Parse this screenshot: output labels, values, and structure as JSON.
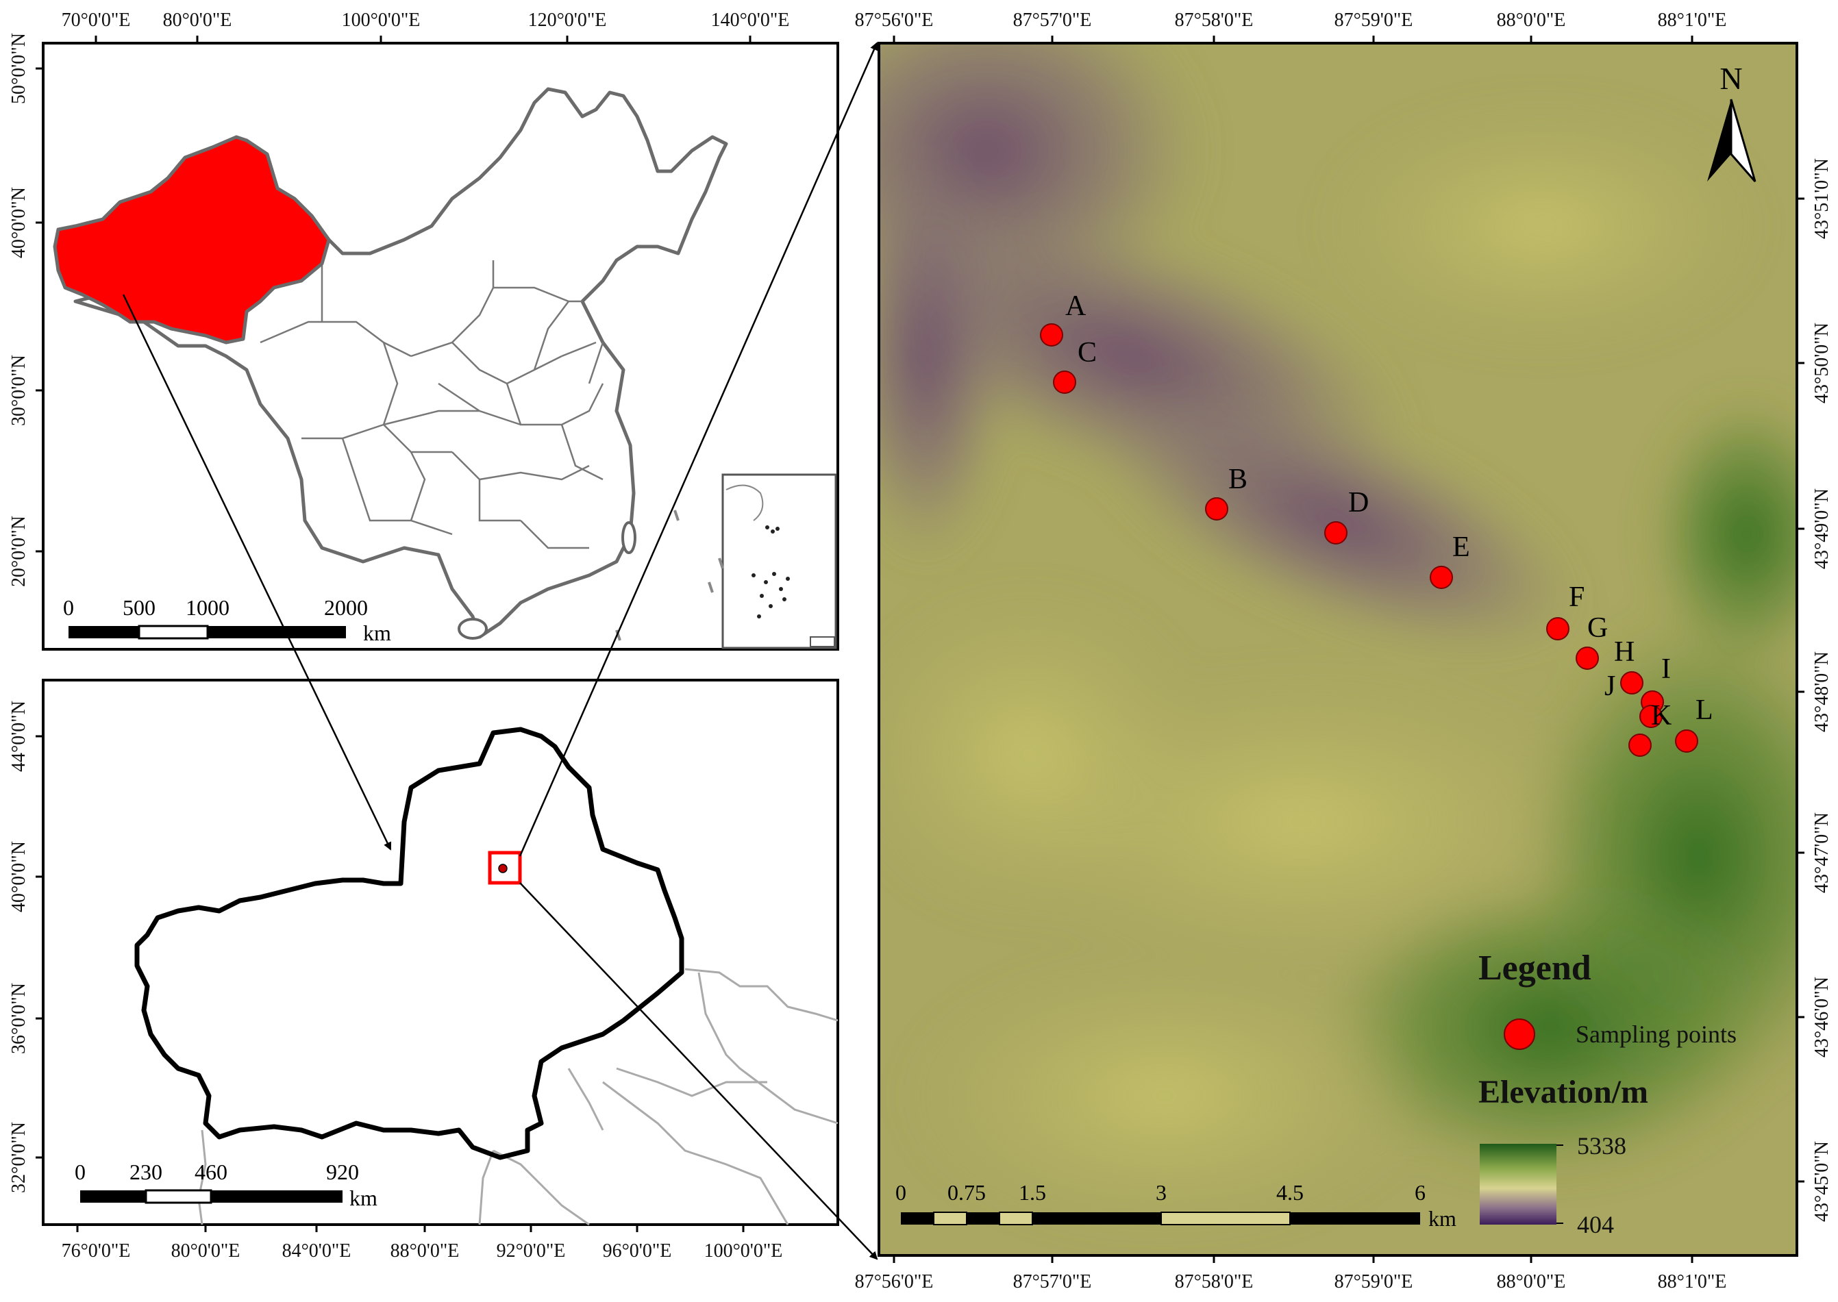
{
  "china_panel": {
    "top_ticks": [
      "70°0'0\"E",
      "80°0'0\"E",
      "100°0'0\"E",
      "120°0'0\"E",
      "140°0'0\"E"
    ],
    "left_ticks": [
      "50°0'0\"N",
      "40°0'0\"N",
      "30°0'0\"N",
      "20°0'0\"N"
    ],
    "scale_numbers": [
      "0",
      "500",
      "1000",
      "2000"
    ],
    "scale_unit": "km",
    "highlight_color": "#ff0000"
  },
  "xinjiang_panel": {
    "bottom_ticks": [
      "76°0'0\"E",
      "80°0'0\"E",
      "84°0'0\"E",
      "88°0'0\"E",
      "92°0'0\"E",
      "96°0'0\"E",
      "100°0'0\"E"
    ],
    "left_ticks": [
      "44°0'0\"N",
      "40°0'0\"N",
      "36°0'0\"N",
      "32°0'0\"N"
    ],
    "scale_numbers": [
      "0",
      "230",
      "460",
      "920"
    ],
    "scale_unit": "km"
  },
  "study_panel": {
    "top_ticks": [
      "87°56'0\"E",
      "87°57'0\"E",
      "87°58'0\"E",
      "87°59'0\"E",
      "88°0'0\"E",
      "88°1'0\"E"
    ],
    "bottom_ticks": [
      "87°56'0\"E",
      "87°57'0\"E",
      "87°58'0\"E",
      "87°59'0\"E",
      "88°0'0\"E",
      "88°1'0\"E"
    ],
    "right_ticks": [
      "43°51'0\"N",
      "43°50'0\"N",
      "43°49'0\"N",
      "43°48'0\"N",
      "43°47'0\"N",
      "43°46'0\"N",
      "43°45'0\"N"
    ],
    "north_label": "N",
    "points": [
      {
        "label": "A"
      },
      {
        "label": "C"
      },
      {
        "label": "B"
      },
      {
        "label": "D"
      },
      {
        "label": "E"
      },
      {
        "label": "F"
      },
      {
        "label": "G"
      },
      {
        "label": "H"
      },
      {
        "label": "I"
      },
      {
        "label": "J"
      },
      {
        "label": "K"
      },
      {
        "label": "L"
      }
    ],
    "scale_numbers": [
      "0",
      "0.75",
      "1.5",
      "3",
      "4.5",
      "6"
    ],
    "scale_unit": "km",
    "legend": {
      "title": "Legend",
      "point_item": "Sampling points",
      "elevation_title": "Elevation/m",
      "elevation_max": "5338",
      "elevation_min": "404"
    },
    "point_color": "#ff0000"
  }
}
